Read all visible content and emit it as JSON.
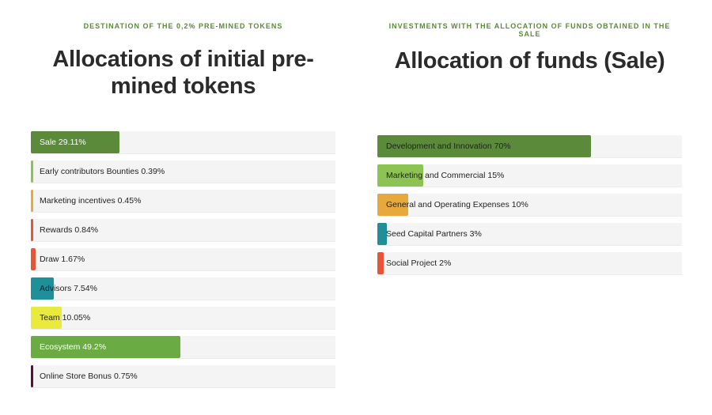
{
  "left": {
    "eyebrow": "DESTINATION OF THE 0,2% PRE-MINED TOKENS",
    "title": "Allocations of initial pre-mined tokens"
  },
  "right": {
    "eyebrow": "INVESTMENTS WITH THE ALLOCATION OF FUNDS OBTAINED IN THE SALE",
    "title": "Allocation of funds (Sale)"
  },
  "chart_data": [
    {
      "type": "bar",
      "orientation": "horizontal",
      "title": "Allocations of initial pre-mined tokens",
      "xlim": [
        0,
        100
      ],
      "categories": [
        "Sale 29.11%",
        "Early contributors Bounties 0.39%",
        "Marketing incentives 0.45%",
        "Rewards 0.84%",
        "Draw 1.67%",
        "Advisors 7.54%",
        "Team 10.05%",
        "Ecosystem 49.2%",
        "Online Store Bonus 0.75%"
      ],
      "values": [
        29.11,
        0.39,
        0.45,
        0.84,
        1.67,
        7.54,
        10.05,
        49.2,
        0.75
      ],
      "colors": [
        "#5a8a3a",
        "#8dc353",
        "#e8a93c",
        "#e6553a",
        "#e6553a",
        "#1f8f9a",
        "#eaea3c",
        "#6aab44",
        "#5a0f3a"
      ],
      "label_light": [
        true,
        false,
        false,
        false,
        false,
        false,
        false,
        true,
        false
      ]
    },
    {
      "type": "bar",
      "orientation": "horizontal",
      "title": "Allocation of funds (Sale)",
      "xlim": [
        0,
        100
      ],
      "categories": [
        "Development and Innovation 70%",
        "Marketing and Commercial 15%",
        "General and Operating Expenses 10%",
        "Seed Capital Partners 3%",
        "Social Project 2%"
      ],
      "values": [
        70,
        15,
        10,
        3,
        2
      ],
      "colors": [
        "#5a8a3a",
        "#8dc353",
        "#e8a93c",
        "#1f8f9a",
        "#e6553a"
      ],
      "label_light": [
        false,
        false,
        false,
        false,
        false
      ]
    }
  ]
}
